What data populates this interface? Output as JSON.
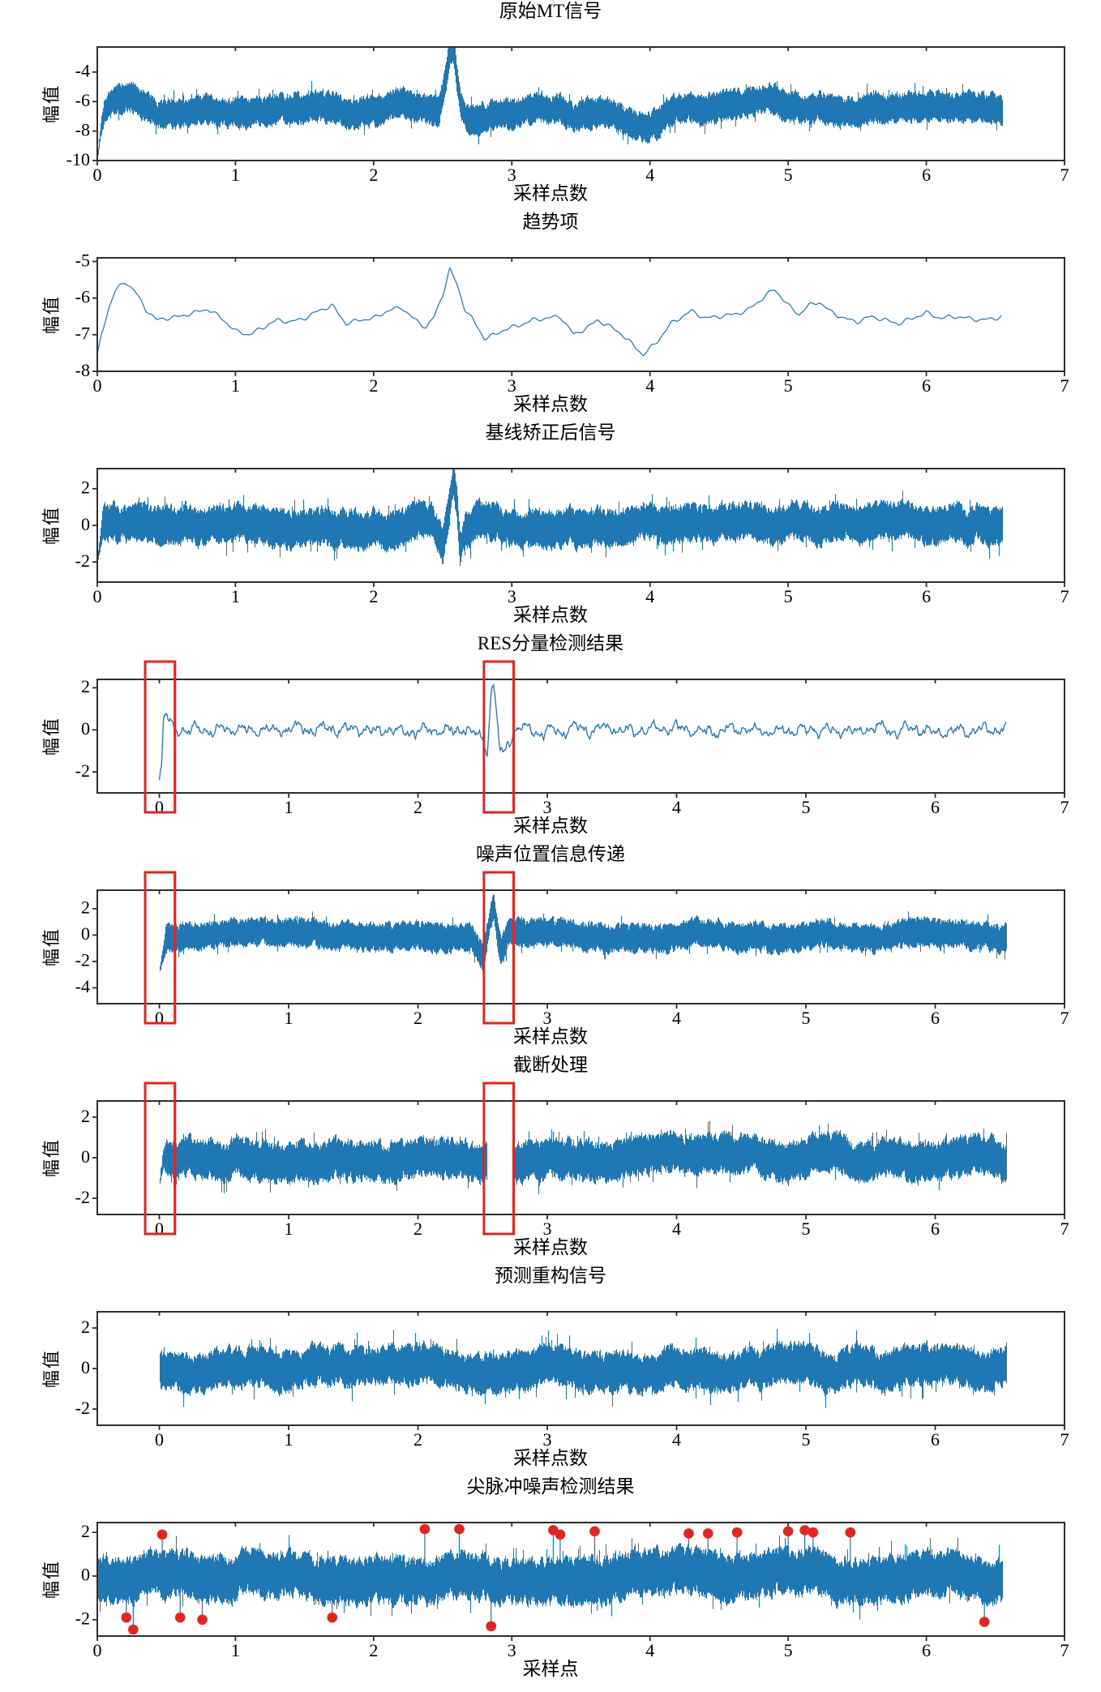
{
  "figure": {
    "background": "#ffffff",
    "line_color": "#1f77b4",
    "frame_color": "#2e2e2e",
    "text_color": "#000000",
    "highlight_color": "#e8231f"
  },
  "chart_data": [
    {
      "type": "line",
      "kind": "band",
      "seed": 11,
      "title": "原始MT信号",
      "xlabel": "采样点数",
      "ylabel": "幅值",
      "xticks": [
        0,
        1,
        2,
        3,
        4,
        5,
        6,
        7
      ],
      "yticks": [
        -4,
        -6,
        -8,
        -10
      ],
      "xlim": [
        0,
        7.0
      ],
      "ylim": [
        -10,
        -2.3
      ],
      "x_data_range": [
        0,
        6.55
      ],
      "base": "trend",
      "amp": 1.25,
      "amp_ramp": true,
      "envelope": [
        [
          0,
          -2.4
        ],
        [
          0.02,
          -1.0
        ],
        [
          0.05,
          0
        ],
        [
          2.4,
          0
        ],
        [
          2.47,
          -0.6
        ],
        [
          2.5,
          0.3
        ],
        [
          2.54,
          2.0
        ],
        [
          2.575,
          2.9
        ],
        [
          2.6,
          1.2
        ],
        [
          2.63,
          -0.5
        ],
        [
          2.7,
          -0.6
        ],
        [
          2.78,
          0
        ]
      ]
    },
    {
      "type": "line",
      "kind": "line",
      "seed": 22,
      "title": "趋势项",
      "xlabel": "采样点数",
      "ylabel": "幅值",
      "xticks": [
        0,
        1,
        2,
        3,
        4,
        5,
        6,
        7
      ],
      "yticks": [
        -5,
        -6,
        -7,
        -8
      ],
      "xlim": [
        0,
        7.0
      ],
      "ylim": [
        -8,
        -4.9
      ],
      "x_data_range": [
        0,
        6.55
      ],
      "keypoints": [
        [
          0,
          -7.6
        ],
        [
          0.03,
          -7.0
        ],
        [
          0.08,
          -6.3
        ],
        [
          0.13,
          -5.8
        ],
        [
          0.2,
          -5.55
        ],
        [
          0.27,
          -5.8
        ],
        [
          0.35,
          -6.3
        ],
        [
          0.43,
          -6.6
        ],
        [
          0.5,
          -6.55
        ],
        [
          0.6,
          -6.5
        ],
        [
          0.7,
          -6.4
        ],
        [
          0.8,
          -6.3
        ],
        [
          0.9,
          -6.55
        ],
        [
          1.0,
          -6.9
        ],
        [
          1.1,
          -7.0
        ],
        [
          1.2,
          -6.8
        ],
        [
          1.3,
          -6.6
        ],
        [
          1.4,
          -6.65
        ],
        [
          1.5,
          -6.55
        ],
        [
          1.6,
          -6.35
        ],
        [
          1.7,
          -6.2
        ],
        [
          1.8,
          -6.7
        ],
        [
          1.9,
          -6.6
        ],
        [
          2.0,
          -6.55
        ],
        [
          2.1,
          -6.35
        ],
        [
          2.2,
          -6.25
        ],
        [
          2.3,
          -6.6
        ],
        [
          2.38,
          -6.8
        ],
        [
          2.44,
          -6.5
        ],
        [
          2.5,
          -5.9
        ],
        [
          2.55,
          -5.2
        ],
        [
          2.6,
          -5.6
        ],
        [
          2.66,
          -6.3
        ],
        [
          2.72,
          -6.6
        ],
        [
          2.8,
          -7.1
        ],
        [
          2.88,
          -7.0
        ],
        [
          2.95,
          -6.85
        ],
        [
          3.05,
          -6.75
        ],
        [
          3.15,
          -6.6
        ],
        [
          3.25,
          -6.55
        ],
        [
          3.35,
          -6.5
        ],
        [
          3.45,
          -7.0
        ],
        [
          3.55,
          -6.8
        ],
        [
          3.62,
          -6.6
        ],
        [
          3.72,
          -6.8
        ],
        [
          3.8,
          -7.0
        ],
        [
          3.95,
          -7.55
        ],
        [
          4.05,
          -7.2
        ],
        [
          4.15,
          -6.7
        ],
        [
          4.3,
          -6.35
        ],
        [
          4.4,
          -6.55
        ],
        [
          4.5,
          -6.5
        ],
        [
          4.6,
          -6.45
        ],
        [
          4.7,
          -6.35
        ],
        [
          4.8,
          -6.05
        ],
        [
          4.9,
          -5.75
        ],
        [
          5.0,
          -6.2
        ],
        [
          5.08,
          -6.45
        ],
        [
          5.15,
          -6.2
        ],
        [
          5.22,
          -6.1
        ],
        [
          5.3,
          -6.35
        ],
        [
          5.4,
          -6.55
        ],
        [
          5.5,
          -6.65
        ],
        [
          5.6,
          -6.5
        ],
        [
          5.7,
          -6.6
        ],
        [
          5.8,
          -6.7
        ],
        [
          5.9,
          -6.55
        ],
        [
          6.0,
          -6.4
        ],
        [
          6.1,
          -6.55
        ],
        [
          6.2,
          -6.5
        ],
        [
          6.3,
          -6.55
        ],
        [
          6.4,
          -6.6
        ],
        [
          6.5,
          -6.55
        ],
        [
          6.55,
          -6.5
        ]
      ]
    },
    {
      "type": "line",
      "kind": "band",
      "seed": 33,
      "title": "基线矫正后信号",
      "xlabel": "采样点数",
      "ylabel": "幅值",
      "xticks": [
        0,
        1,
        2,
        3,
        4,
        5,
        6,
        7
      ],
      "yticks": [
        2,
        0,
        -2
      ],
      "xlim": [
        0,
        7.0
      ],
      "ylim": [
        -3.1,
        3.1
      ],
      "x_data_range": [
        0,
        6.55
      ],
      "base": 0,
      "amp": 1.25,
      "amp_ramp": true,
      "envelope": [
        [
          0,
          -2.0
        ],
        [
          0.04,
          0
        ],
        [
          2.42,
          0
        ],
        [
          2.5,
          -1.2
        ],
        [
          2.545,
          0.8
        ],
        [
          2.575,
          2.3
        ],
        [
          2.6,
          1.0
        ],
        [
          2.625,
          -1.5
        ],
        [
          2.66,
          -0.6
        ],
        [
          2.74,
          0
        ]
      ]
    },
    {
      "type": "line",
      "kind": "smooth",
      "seed": 44,
      "title": "RES分量检测结果",
      "xlabel": "采样点数",
      "ylabel": "幅值",
      "xticks": [
        0,
        1,
        2,
        3,
        4,
        5,
        6,
        7
      ],
      "yticks": [
        2,
        0,
        -2
      ],
      "xlim": [
        -0.48,
        7.0
      ],
      "ylim": [
        -3.0,
        2.4
      ],
      "x_data_range": [
        0,
        6.55
      ],
      "base": 0,
      "amp": 0.3,
      "envelope": [
        [
          0,
          -2.35
        ],
        [
          0.018,
          -1.7
        ],
        [
          0.03,
          0.5
        ],
        [
          0.05,
          0.75
        ],
        [
          0.09,
          0.1
        ],
        [
          0.14,
          0
        ],
        [
          2.46,
          0
        ],
        [
          2.51,
          -0.5
        ],
        [
          2.535,
          -0.9
        ],
        [
          2.565,
          1.6
        ],
        [
          2.585,
          2.15
        ],
        [
          2.61,
          0.6
        ],
        [
          2.635,
          -1.1
        ],
        [
          2.655,
          -1.35
        ],
        [
          2.69,
          -0.6
        ],
        [
          2.75,
          0
        ]
      ],
      "red_boxes": [
        [
          -0.11,
          0.12
        ],
        [
          2.51,
          2.74
        ]
      ]
    },
    {
      "type": "line",
      "kind": "band",
      "seed": 55,
      "title": "噪声位置信息传递",
      "xlabel": "采样点数",
      "ylabel": "幅值",
      "xticks": [
        0,
        1,
        2,
        3,
        4,
        5,
        6,
        7
      ],
      "yticks": [
        2,
        0,
        -2,
        -4
      ],
      "xlim": [
        -0.48,
        7.0
      ],
      "ylim": [
        -5.2,
        3.4
      ],
      "x_data_range": [
        0,
        6.55
      ],
      "base": 0,
      "amp": 1.3,
      "amp_ramp": true,
      "envelope": [
        [
          0,
          -2.6
        ],
        [
          0.05,
          0
        ],
        [
          2.42,
          0
        ],
        [
          2.5,
          -1.4
        ],
        [
          2.55,
          1.0
        ],
        [
          2.585,
          2.2
        ],
        [
          2.615,
          -0.3
        ],
        [
          2.64,
          -1.4
        ],
        [
          2.7,
          0
        ]
      ],
      "red_boxes": [
        [
          -0.11,
          0.12
        ],
        [
          2.51,
          2.74
        ]
      ]
    },
    {
      "type": "line",
      "kind": "band",
      "seed": 66,
      "title": "截断处理",
      "xlabel": "采样点数",
      "ylabel": "幅值",
      "xticks": [
        0,
        1,
        2,
        3,
        4,
        5,
        6,
        7
      ],
      "yticks": [
        2,
        0,
        -2
      ],
      "xlim": [
        -0.48,
        7.0
      ],
      "ylim": [
        -2.8,
        2.8
      ],
      "x_data_range": [
        0,
        6.55
      ],
      "base": 0,
      "amp": 1.2,
      "amp_ramp": true,
      "envelope": [
        [
          0,
          -1.3
        ],
        [
          0.03,
          0
        ]
      ],
      "gap": [
        2.53,
        2.73
      ],
      "red_boxes": [
        [
          -0.11,
          0.12
        ],
        [
          2.51,
          2.74
        ]
      ]
    },
    {
      "type": "line",
      "kind": "band",
      "seed": 77,
      "title": "预测重构信号",
      "xlabel": "采样点数",
      "ylabel": "幅值",
      "xticks": [
        0,
        1,
        2,
        3,
        4,
        5,
        6,
        7
      ],
      "yticks": [
        2,
        0,
        -2
      ],
      "xlim": [
        -0.48,
        7.0
      ],
      "ylim": [
        -2.8,
        2.8
      ],
      "x_data_range": [
        0,
        6.55
      ],
      "base": 0,
      "amp": 1.2
    },
    {
      "type": "line",
      "kind": "band",
      "seed": 88,
      "title": "尖脉冲噪声检测结果",
      "xlabel": "采样点",
      "ylabel": "幅值",
      "xticks": [
        0,
        1,
        2,
        3,
        4,
        5,
        6,
        7
      ],
      "yticks": [
        2,
        0,
        -2
      ],
      "xlim": [
        0,
        7.0
      ],
      "ylim": [
        -2.75,
        2.45
      ],
      "x_data_range": [
        0,
        6.55
      ],
      "base": 0,
      "amp": 1.3,
      "red_dots": [
        [
          0.21,
          -1.9
        ],
        [
          0.26,
          -2.45
        ],
        [
          0.47,
          1.9
        ],
        [
          0.6,
          -1.9
        ],
        [
          0.76,
          -2.0
        ],
        [
          1.7,
          -1.9
        ],
        [
          2.37,
          2.15
        ],
        [
          2.62,
          2.15
        ],
        [
          2.85,
          -2.3
        ],
        [
          3.3,
          2.1
        ],
        [
          3.35,
          1.9
        ],
        [
          3.6,
          2.05
        ],
        [
          4.28,
          1.95
        ],
        [
          4.42,
          1.95
        ],
        [
          4.63,
          2.0
        ],
        [
          5.0,
          2.05
        ],
        [
          5.12,
          2.1
        ],
        [
          5.18,
          2.0
        ],
        [
          5.45,
          2.0
        ],
        [
          6.42,
          -2.1
        ]
      ]
    }
  ]
}
